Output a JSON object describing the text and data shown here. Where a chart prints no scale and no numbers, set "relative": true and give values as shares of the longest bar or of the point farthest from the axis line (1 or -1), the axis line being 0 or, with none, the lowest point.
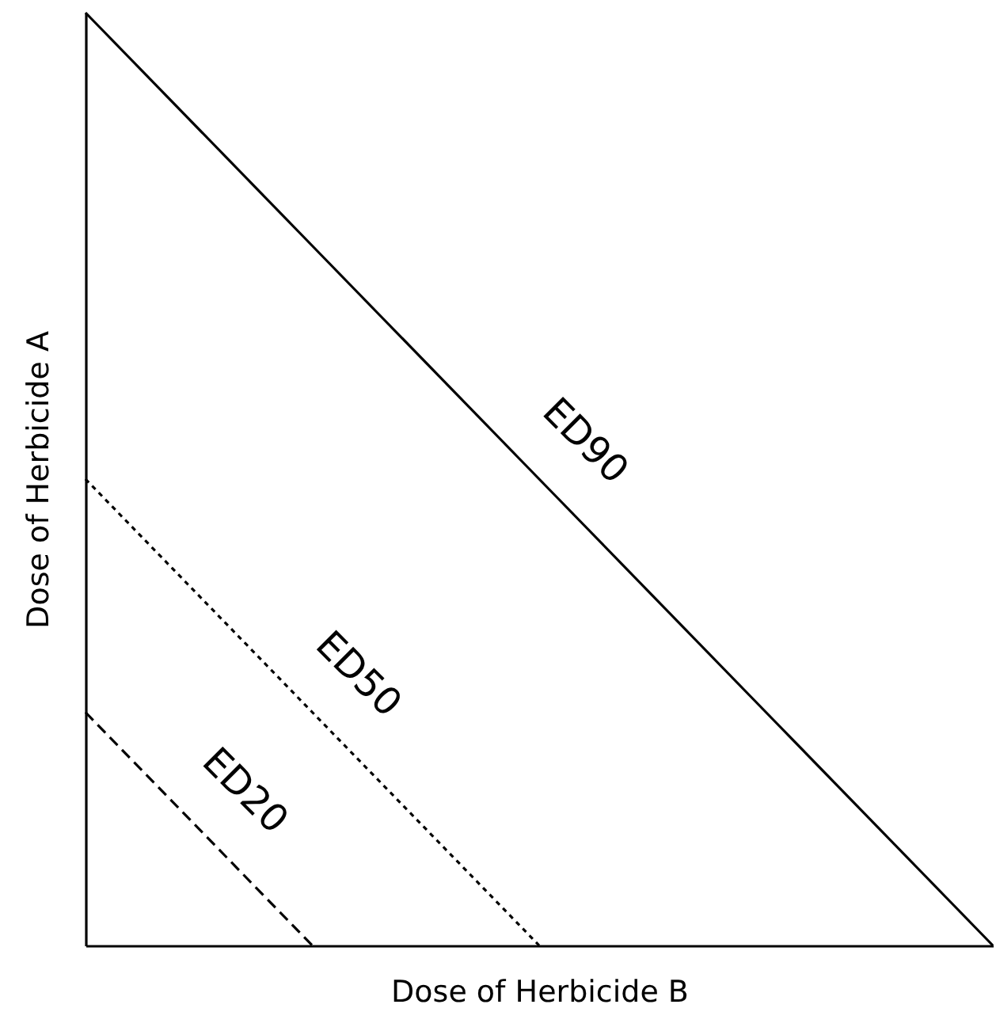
{
  "chart_data": {
    "type": "line",
    "relative": true,
    "xlabel": "Dose of Herbicide B",
    "ylabel": "Dose of Herbicide A",
    "grid": false,
    "marker": "none",
    "categories": [
      null,
      null,
      null,
      null,
      null
    ],
    "series": [
      {
        "name": "ED90",
        "color": "#000000",
        "line_style": "solid",
        "values": [
          1,
          0.75,
          0.5,
          0.25,
          0
        ]
      },
      {
        "name": "ED50",
        "color": "#000000",
        "line_style": "dotted",
        "values": [
          0.5,
          0.25,
          0,
          null,
          null
        ]
      },
      {
        "name": "ED20",
        "color": "#000000",
        "line_style": "dashed",
        "values": [
          0.25,
          0,
          null,
          null,
          null
        ]
      }
    ]
  }
}
